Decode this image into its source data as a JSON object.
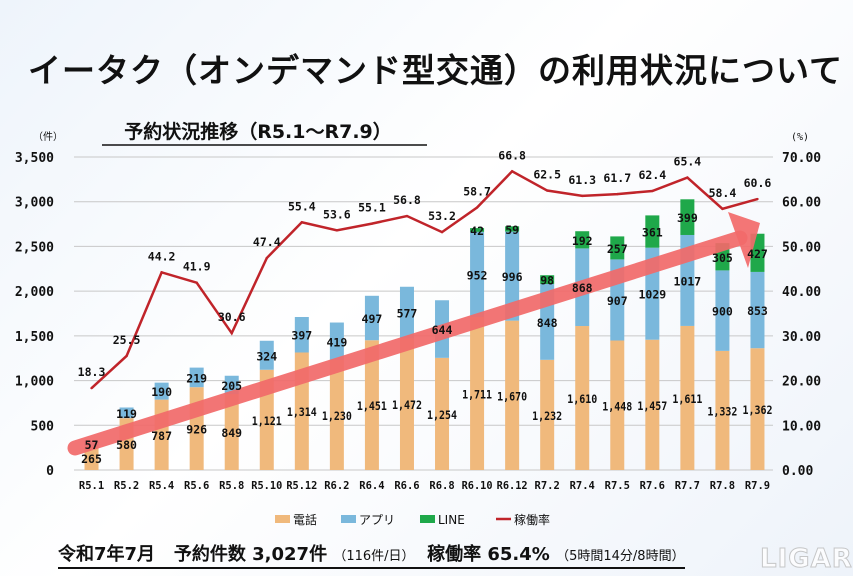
{
  "title": "イータク（オンデマンド型交通）の利用状況について",
  "chart_data": {
    "type": "bar",
    "stacked": true,
    "title": "予約状況推移（R5.1～R7.9）",
    "y_left_unit": "（件）",
    "y_right_unit": "(%)",
    "ylim_left": [
      0,
      3500
    ],
    "ylim_right": [
      0,
      70
    ],
    "yticks_left": [
      "0",
      "500",
      "1,000",
      "1,500",
      "2,000",
      "2,500",
      "3,000",
      "3,500"
    ],
    "yticks_right": [
      "0.00",
      "10.00",
      "20.00",
      "30.00",
      "40.00",
      "50.00",
      "60.00",
      "70.00"
    ],
    "grid": true,
    "legend_position": "bottom",
    "categories": [
      "R5.1",
      "R5.2",
      "R5.4",
      "R5.6",
      "R5.8",
      "R5.10",
      "R5.12",
      "R6.2",
      "R6.4",
      "R6.6",
      "R6.8",
      "R6.10",
      "R6.12",
      "R7.2",
      "R7.4",
      "R7.5",
      "R7.6",
      "R7.7",
      "R7.8",
      "R7.9"
    ],
    "series": [
      {
        "name": "電話",
        "type": "bar",
        "axis": "left",
        "color": "#f0b97c",
        "values": [
          265,
          580,
          787,
          926,
          849,
          1121,
          1314,
          1230,
          1451,
          1472,
          1254,
          1711,
          1670,
          1232,
          1610,
          1448,
          1457,
          1611,
          1332,
          1362
        ]
      },
      {
        "name": "アプリ",
        "type": "bar",
        "axis": "left",
        "color": "#7ab8dc",
        "values": [
          57,
          119,
          190,
          219,
          205,
          324,
          397,
          419,
          497,
          577,
          644,
          952,
          996,
          848,
          868,
          907,
          1029,
          1017,
          900,
          853
        ]
      },
      {
        "name": "LINE",
        "type": "bar",
        "axis": "left",
        "color": "#1fa84a",
        "values": [
          null,
          null,
          null,
          null,
          null,
          null,
          null,
          null,
          null,
          null,
          null,
          42,
          59,
          98,
          192,
          257,
          361,
          399,
          305,
          427
        ]
      },
      {
        "name": "稼働率",
        "type": "line",
        "axis": "right",
        "color": "#c0242a",
        "values": [
          18.3,
          25.5,
          44.2,
          41.9,
          30.6,
          47.4,
          55.4,
          53.6,
          55.1,
          56.8,
          53.2,
          58.7,
          66.8,
          62.5,
          61.3,
          61.7,
          62.4,
          65.4,
          58.4,
          60.6
        ]
      }
    ],
    "data_labels_phone": [
      "265",
      "580",
      "787",
      "926",
      "849",
      "1,121",
      "1,314",
      "1,230",
      "1,451",
      "1,472",
      "1,254",
      "1,711",
      "1,670",
      "1,232",
      "1,610",
      "1,448",
      "1,457",
      "1,611",
      "1,332",
      "1,362"
    ],
    "trend_arrow_color": "#f26a6a"
  },
  "summary": {
    "month": "令和7年7月",
    "bookings": "予約件数 3,027件",
    "per_day": "（116件/日）",
    "rate": "稼働率 65.4%",
    "rate_detail": "（5時間14分/8時間）"
  },
  "watermark": "LIGARE"
}
